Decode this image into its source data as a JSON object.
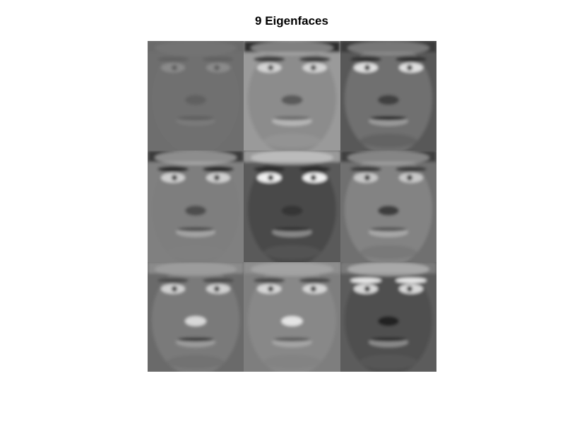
{
  "figure": {
    "title": "9 Eigenfaces"
  },
  "eigenfaces": [
    {
      "index": 1,
      "bg": "#6e6e6e",
      "skin": "#707070",
      "hair": "#6b6b6b",
      "brow": "#626262",
      "eye_white": "#8a8a8a",
      "eye_dark": "#5e5e5e",
      "nose": "#606060",
      "mouth": "#5f5f5f",
      "lip": "#7a7a7a",
      "hair_light": "#787878"
    },
    {
      "index": 2,
      "bg": "#9a9a9a",
      "skin": "#8c8c8c",
      "hair": "#2e2e2e",
      "brow": "#3a3a3a",
      "eye_white": "#d4d4d4",
      "eye_dark": "#505050",
      "nose": "#5a5a5a",
      "mouth": "#6a6a6a",
      "lip": "#b6b6b6",
      "hair_light": "#b8b8b8"
    },
    {
      "index": 3,
      "bg": "#585858",
      "skin": "#707070",
      "hair": "#3a3a3a",
      "brow": "#2e2e2e",
      "eye_white": "#e0e0e0",
      "eye_dark": "#383838",
      "nose": "#404040",
      "mouth": "#222222",
      "lip": "#9a9a9a",
      "hair_light": "#a0a0a0"
    },
    {
      "index": 4,
      "bg": "#808080",
      "skin": "#7e7e7e",
      "hair": "#3a3a3a",
      "brow": "#262626",
      "eye_white": "#cfcfcf",
      "eye_dark": "#3c3c3c",
      "nose": "#4e4e4e",
      "mouth": "#4c4c4c",
      "lip": "#a4a4a4",
      "hair_light": "#c4c4c4"
    },
    {
      "index": 5,
      "bg": "#5a5a5a",
      "skin": "#4a4a4a",
      "hair": "#9a9a9a",
      "brow": "#2c2c2c",
      "eye_white": "#f0f0f0",
      "eye_dark": "#1e1e1e",
      "nose": "#363636",
      "mouth": "#303030",
      "lip": "#888888",
      "hair_light": "#d2d2d2"
    },
    {
      "index": 6,
      "bg": "#707070",
      "skin": "#838383",
      "hair": "#404040",
      "brow": "#3a3a3a",
      "eye_white": "#c8c8c8",
      "eye_dark": "#303030",
      "nose": "#3c3c3c",
      "mouth": "#545454",
      "lip": "#a8a8a8",
      "hair_light": "#b4b4b4"
    },
    {
      "index": 7,
      "bg": "#6a6a6a",
      "skin": "#7a7a7a",
      "hair": "#8a8a8a",
      "brow": "#4c4c4c",
      "eye_white": "#d0d0d0",
      "eye_dark": "#3e3e3e",
      "nose": "#d8d8d8",
      "mouth": "#363636",
      "lip": "#9c9c9c",
      "hair_light": "#a8a8a8"
    },
    {
      "index": 8,
      "bg": "#7e7e7e",
      "skin": "#888888",
      "hair": "#8e8e8e",
      "brow": "#484848",
      "eye_white": "#d6d6d6",
      "eye_dark": "#3c3c3c",
      "nose": "#e4e4e4",
      "mouth": "#5a5a5a",
      "lip": "#a6a6a6",
      "hair_light": "#b0b0b0"
    },
    {
      "index": 9,
      "bg": "#5c5c5c",
      "skin": "#505050",
      "hair": "#7a7a7a",
      "brow": "#e6e6e6",
      "eye_white": "#d8d8d8",
      "eye_dark": "#2a2a2a",
      "nose": "#242424",
      "mouth": "#2c2c2c",
      "lip": "#8a8a8a",
      "hair_light": "#c8c8c8"
    }
  ]
}
